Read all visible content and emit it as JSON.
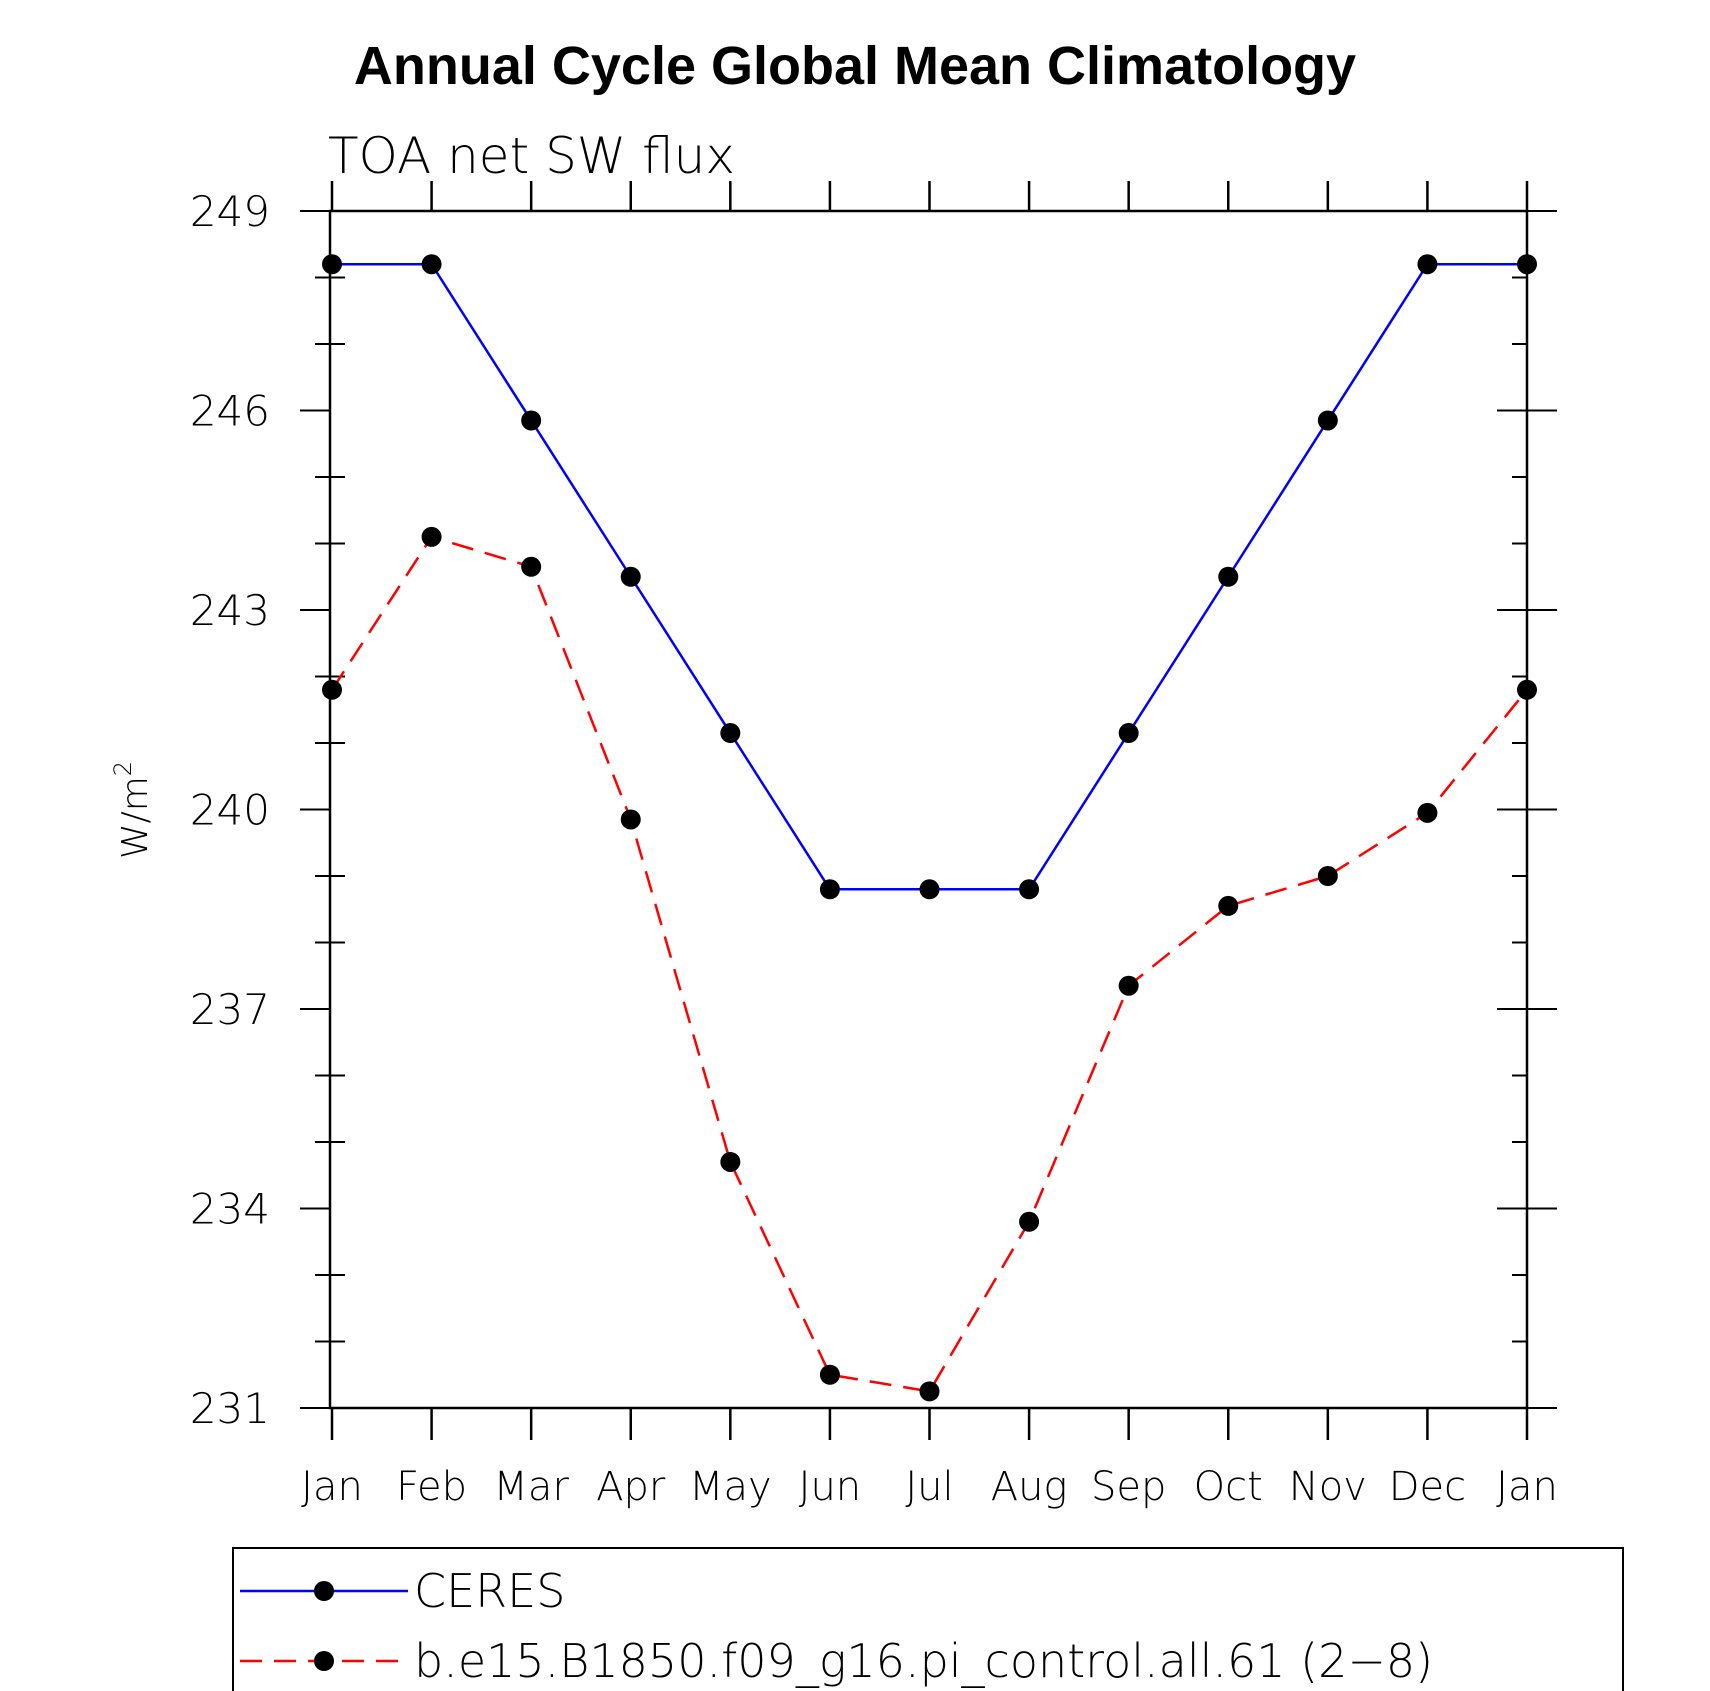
{
  "chart_data": {
    "type": "line",
    "title": "Annual Cycle Global Mean Climatology",
    "subtitle": "TOA net SW flux",
    "ylabel": "W/m",
    "ylabel_superscript": "2",
    "xlabel": "",
    "categories": [
      "Jan",
      "Feb",
      "Mar",
      "Apr",
      "May",
      "Jun",
      "Jul",
      "Aug",
      "Sep",
      "Oct",
      "Nov",
      "Dec",
      "Jan"
    ],
    "ylim": [
      231,
      249
    ],
    "yticks": [
      "249",
      "246",
      "243",
      "240",
      "237",
      "234",
      "231"
    ],
    "ytick_values": [
      249,
      246,
      243,
      240,
      237,
      234,
      231
    ],
    "series": [
      {
        "name": "CERES",
        "color": "#0000ff",
        "style": "solid",
        "values": [
          248.2,
          248.2,
          245.85,
          243.5,
          241.15,
          238.8,
          238.8,
          238.8,
          241.15,
          243.5,
          245.85,
          248.2,
          248.2
        ]
      },
      {
        "name": "b.e15.B1850.f09_g16.pi_control.all.61 (2−8)",
        "color": "#ff0000",
        "style": "dashed",
        "values": [
          241.8,
          244.1,
          243.65,
          239.85,
          234.7,
          231.5,
          231.25,
          233.8,
          237.35,
          238.55,
          239.0,
          239.95,
          241.8
        ]
      }
    ],
    "legend_position": "bottom"
  }
}
